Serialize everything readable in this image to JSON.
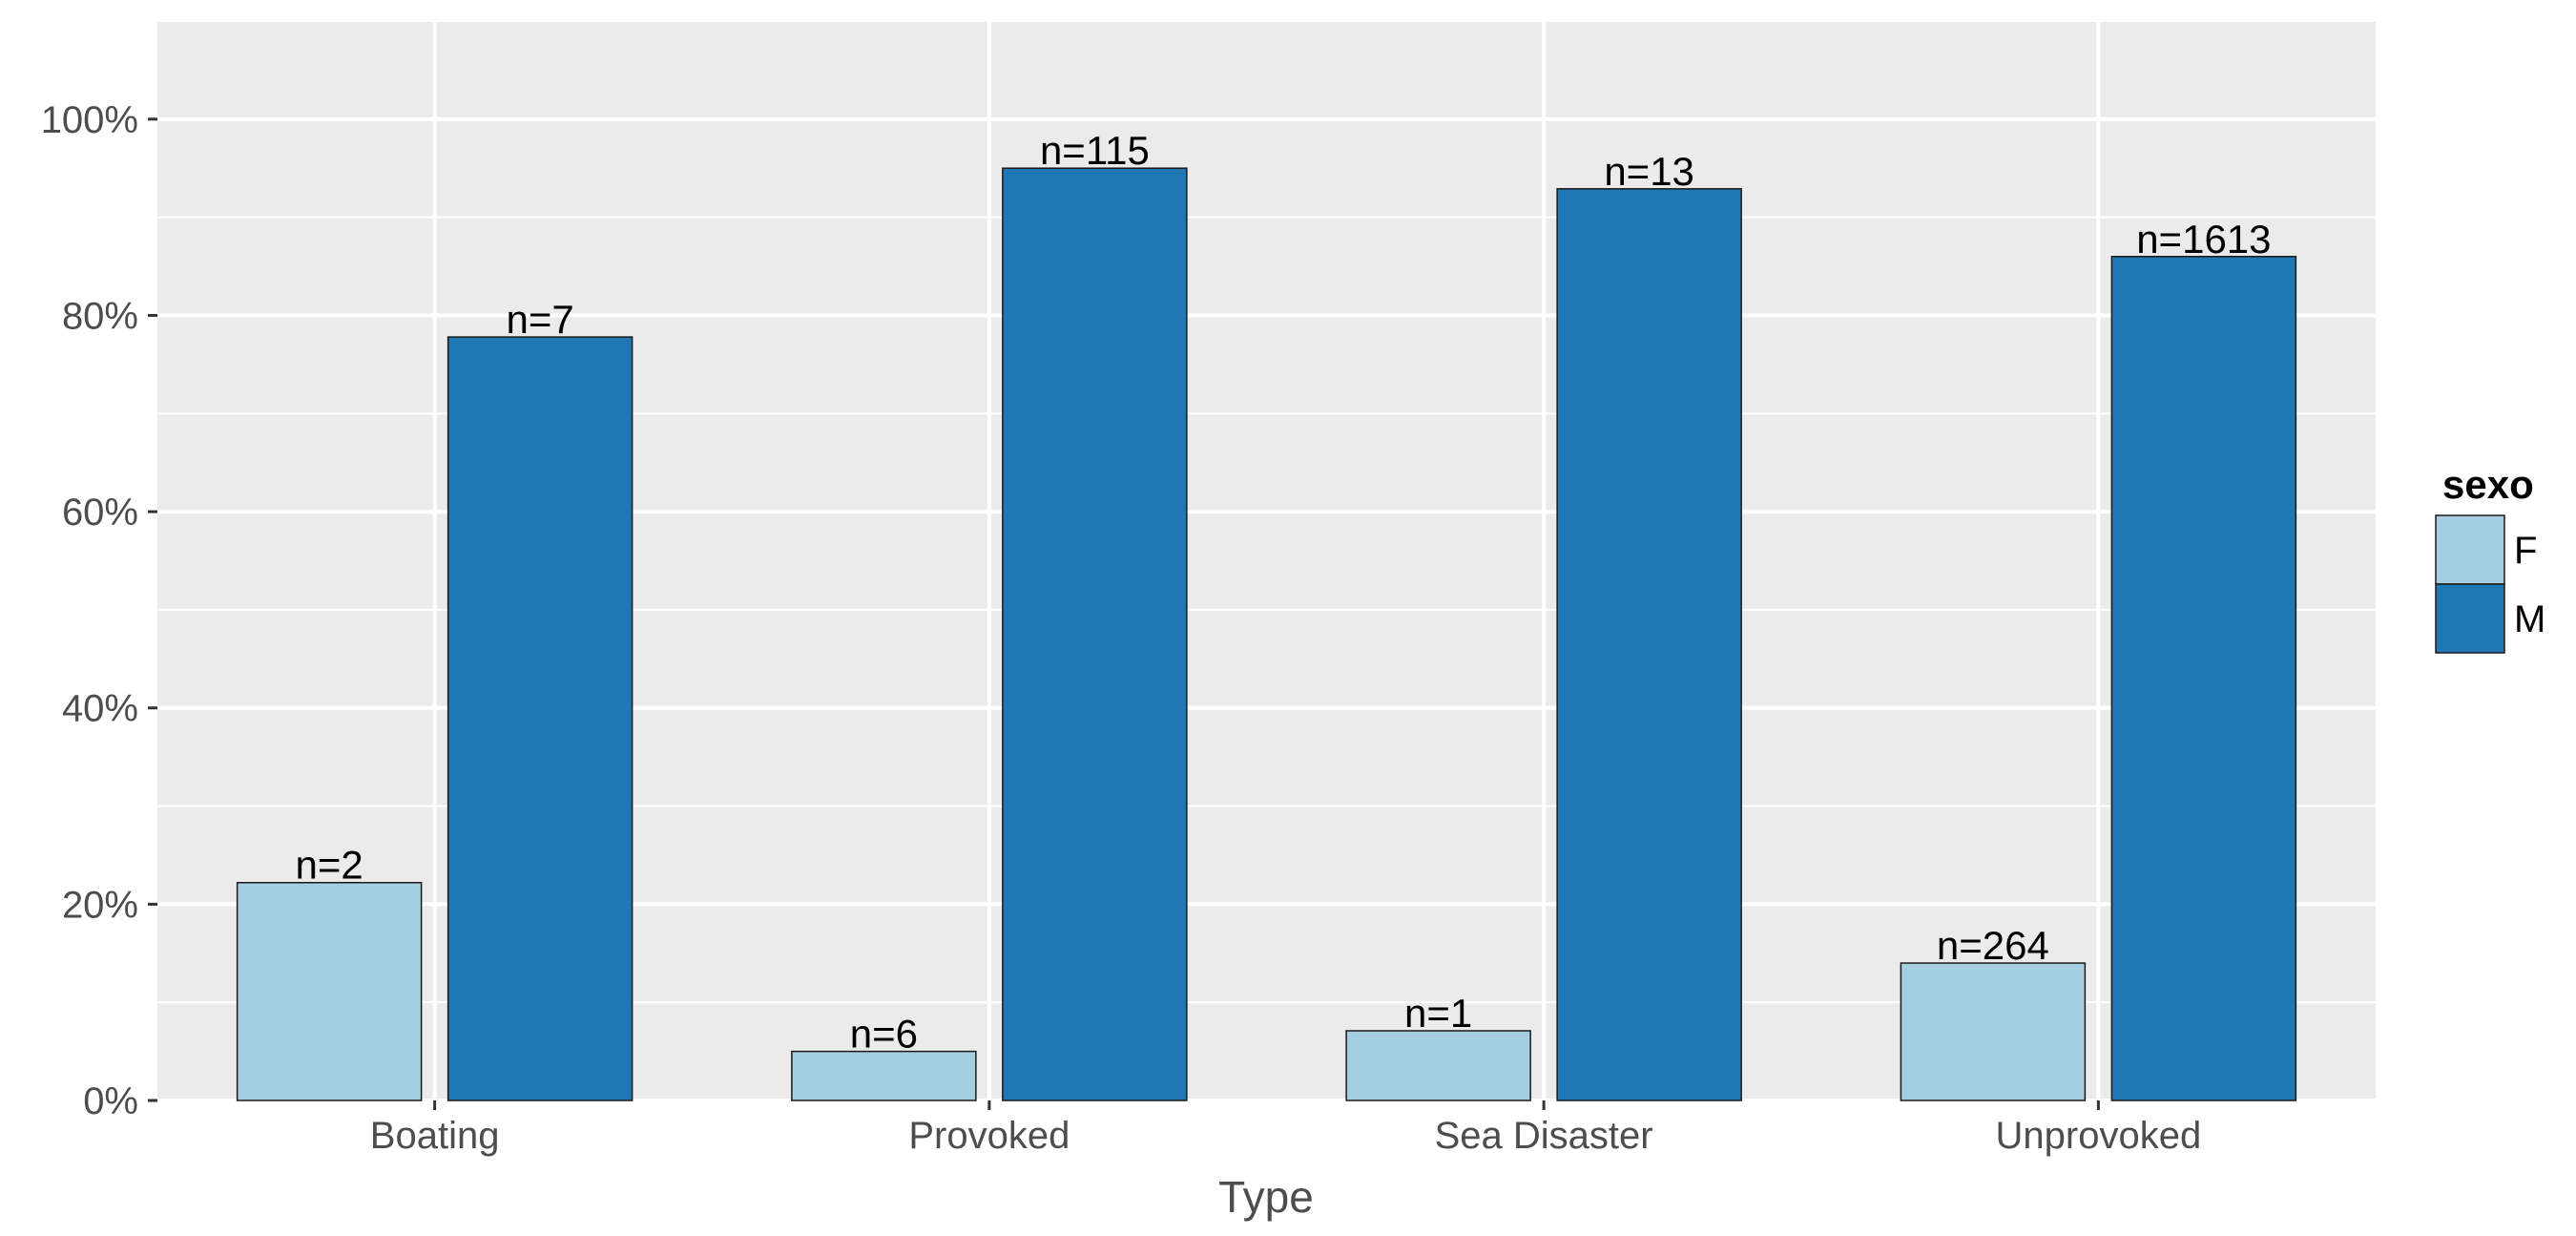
{
  "chart_data": {
    "type": "bar",
    "xlabel": "Type",
    "ylabel": "",
    "categories": [
      "Boating",
      "Provoked",
      "Sea Disaster",
      "Unprovoked"
    ],
    "ylim": [
      0,
      1.1
    ],
    "y_ticks": [
      0,
      0.2,
      0.4,
      0.6,
      0.8,
      1.0
    ],
    "y_tick_labels": [
      "0%",
      "20%",
      "40%",
      "60%",
      "80%",
      "100%"
    ],
    "series": [
      {
        "name": "F",
        "color": "#a6cee3",
        "values": [
          0.222,
          0.05,
          0.071,
          0.14
        ],
        "labels": [
          "n=2",
          "n=6",
          "n=1",
          "n=264"
        ]
      },
      {
        "name": "M",
        "color": "#1f78b4",
        "values": [
          0.778,
          0.95,
          0.929,
          0.86
        ],
        "labels": [
          "n=7",
          "n=115",
          "n=13",
          "n=1613"
        ]
      }
    ],
    "legend": {
      "title": "sexo",
      "placement": "right"
    },
    "grid": true,
    "panel_background": "#ebebeb",
    "grid_color": "#ffffff"
  }
}
